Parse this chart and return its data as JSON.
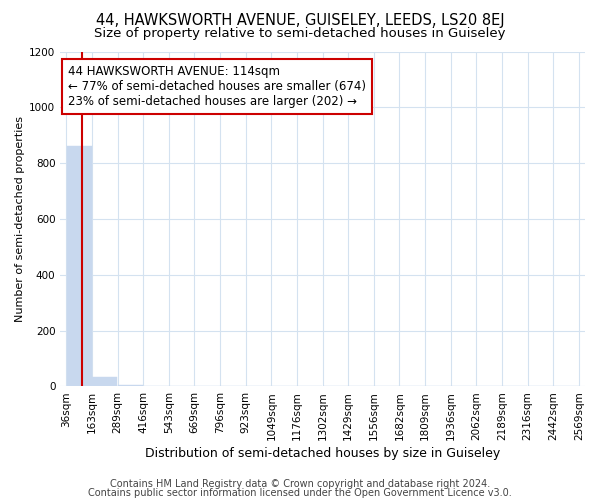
{
  "title": "44, HAWKSWORTH AVENUE, GUISELEY, LEEDS, LS20 8EJ",
  "subtitle": "Size of property relative to semi-detached houses in Guiseley",
  "xlabel": "Distribution of semi-detached houses by size in Guiseley",
  "ylabel": "Number of semi-detached properties",
  "annotation_line1": "44 HAWKSWORTH AVENUE: 114sqm",
  "annotation_line2": "← 77% of semi-detached houses are smaller (674)",
  "annotation_line3": "23% of semi-detached houses are larger (202) →",
  "footer1": "Contains HM Land Registry data © Crown copyright and database right 2024.",
  "footer2": "Contains public sector information licensed under the Open Government Licence v3.0.",
  "bin_edges": [
    36,
    163,
    289,
    416,
    543,
    669,
    796,
    923,
    1049,
    1176,
    1302,
    1429,
    1556,
    1682,
    1809,
    1936,
    2062,
    2189,
    2316,
    2442,
    2569
  ],
  "bar_heights": [
    860,
    35,
    4,
    1,
    0,
    1,
    0,
    0,
    0,
    0,
    0,
    0,
    0,
    0,
    0,
    0,
    0,
    0,
    0,
    0
  ],
  "bar_color": "#c8d8ee",
  "vline_color": "#cc0000",
  "vline_x": 114,
  "ylim": [
    0,
    1200
  ],
  "yticks": [
    0,
    200,
    400,
    600,
    800,
    1000,
    1200
  ],
  "annotation_box_edge_color": "#cc0000",
  "grid_color": "#d4e2f0",
  "title_fontsize": 10.5,
  "subtitle_fontsize": 9.5,
  "xlabel_fontsize": 9,
  "ylabel_fontsize": 8,
  "tick_fontsize": 7.5,
  "annotation_fontsize": 8.5,
  "footer_fontsize": 7
}
